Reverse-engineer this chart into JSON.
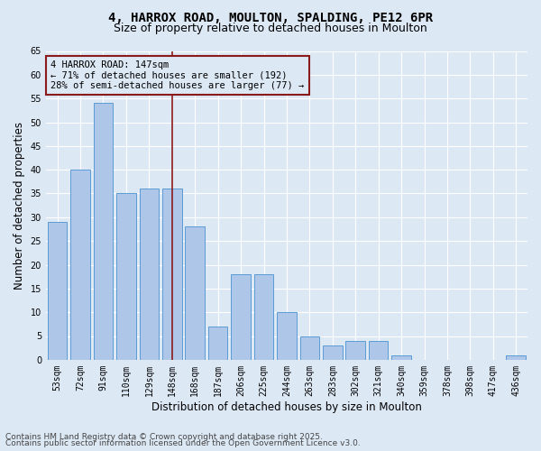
{
  "title_line1": "4, HARROX ROAD, MOULTON, SPALDING, PE12 6PR",
  "title_line2": "Size of property relative to detached houses in Moulton",
  "xlabel": "Distribution of detached houses by size in Moulton",
  "ylabel": "Number of detached properties",
  "categories": [
    "53sqm",
    "72sqm",
    "91sqm",
    "110sqm",
    "129sqm",
    "148sqm",
    "168sqm",
    "187sqm",
    "206sqm",
    "225sqm",
    "244sqm",
    "263sqm",
    "283sqm",
    "302sqm",
    "321sqm",
    "340sqm",
    "359sqm",
    "378sqm",
    "398sqm",
    "417sqm",
    "436sqm"
  ],
  "values": [
    29,
    40,
    54,
    35,
    36,
    36,
    28,
    7,
    18,
    18,
    10,
    5,
    3,
    4,
    4,
    1,
    0,
    0,
    0,
    0,
    1
  ],
  "highlight_index": 5,
  "bar_color": "#aec6e8",
  "bar_edge_color": "#5b9bd5",
  "highlight_line_color": "#8b1a1a",
  "annotation_box_text": "4 HARROX ROAD: 147sqm\n← 71% of detached houses are smaller (192)\n28% of semi-detached houses are larger (77) →",
  "annotation_box_color": "#8b1a1a",
  "background_color": "#dde8f5",
  "ylim": [
    0,
    65
  ],
  "yticks": [
    0,
    5,
    10,
    15,
    20,
    25,
    30,
    35,
    40,
    45,
    50,
    55,
    60,
    65
  ],
  "grid_color": "#ffffff",
  "footnote_line1": "Contains HM Land Registry data © Crown copyright and database right 2025.",
  "footnote_line2": "Contains public sector information licensed under the Open Government Licence v3.0.",
  "title_fontsize": 10,
  "subtitle_fontsize": 9,
  "axis_label_fontsize": 8.5,
  "tick_fontsize": 7,
  "annot_fontsize": 7.5,
  "footnote_fontsize": 6.5
}
